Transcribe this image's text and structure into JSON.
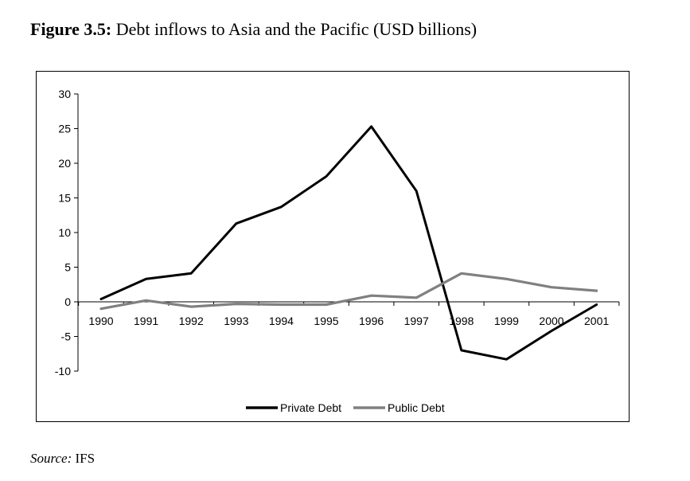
{
  "figure": {
    "label": "Figure 3.5:",
    "title": "Debt inflows to Asia and the Pacific (USD billions)"
  },
  "source": {
    "label": "Source:",
    "value": "IFS"
  },
  "chart_data": {
    "type": "line",
    "categories": [
      "1990",
      "1991",
      "1992",
      "1993",
      "1994",
      "1995",
      "1996",
      "1997",
      "1998",
      "1999",
      "2000",
      "2001"
    ],
    "series": [
      {
        "name": "Private Debt",
        "color": "#000000",
        "values": [
          0.4,
          3.3,
          4.1,
          11.3,
          13.7,
          18.1,
          25.3,
          16.0,
          -7.0,
          -8.3,
          -4.2,
          -0.4
        ]
      },
      {
        "name": "Public Debt",
        "color": "#808080",
        "values": [
          -1.0,
          0.2,
          -0.7,
          -0.3,
          -0.4,
          -0.4,
          0.9,
          0.6,
          4.1,
          3.3,
          2.1,
          1.6
        ]
      }
    ],
    "ylim": [
      -10,
      30
    ],
    "yticks": [
      -10,
      -5,
      0,
      5,
      10,
      15,
      20,
      25,
      30
    ],
    "grid": false,
    "legend_position": "bottom"
  }
}
